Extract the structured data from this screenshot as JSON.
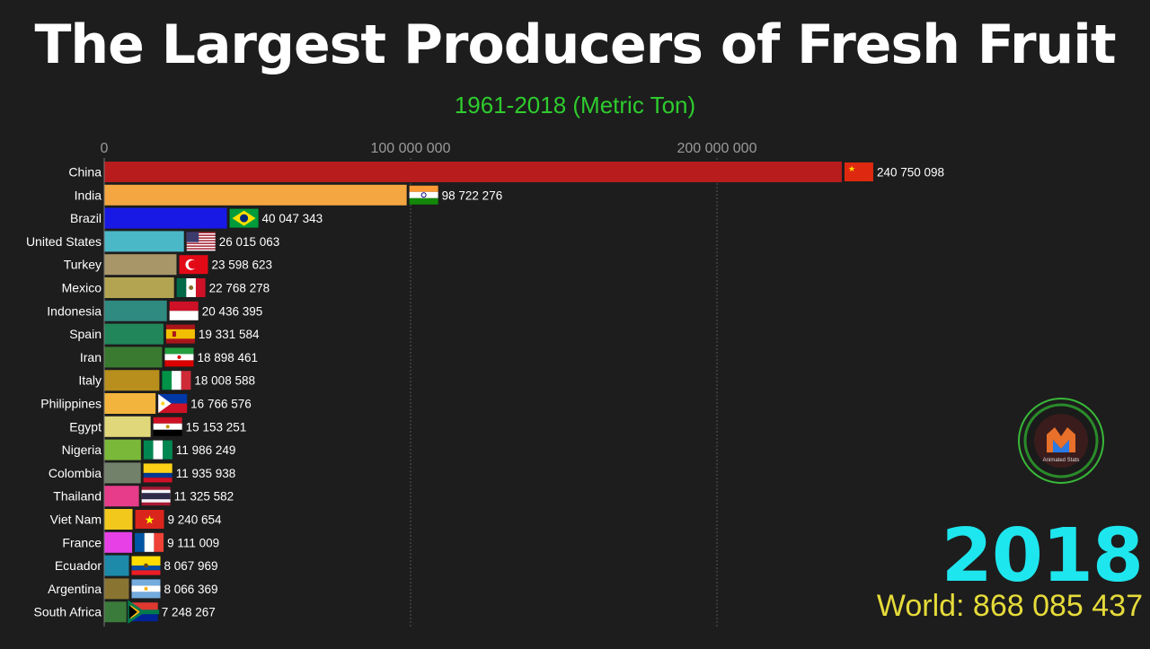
{
  "title": "The Largest Producers of Fresh Fruit",
  "subtitle": "1961-2018 (Metric Ton)",
  "year": "2018",
  "world_total": "World: 868 085 437",
  "logo_text": "Animated Stats",
  "chart_data": {
    "type": "bar",
    "orientation": "horizontal",
    "x_ticks": [
      "0",
      "100 000 000",
      "200 000 000"
    ],
    "x_tick_values": [
      0,
      100000000,
      200000000
    ],
    "grid": true,
    "bars": [
      {
        "country": "China",
        "value": 240750098,
        "label": "240 750 098",
        "color": "#b81c1c",
        "flag": "china-flag-icon"
      },
      {
        "country": "India",
        "value": 98722276,
        "label": "98 722 276",
        "color": "#f4a640",
        "flag": "india-flag-icon"
      },
      {
        "country": "Brazil",
        "value": 40047343,
        "label": "40 047 343",
        "color": "#1919e6",
        "flag": "brazil-flag-icon"
      },
      {
        "country": "United States",
        "value": 26015063,
        "label": "26 015 063",
        "color": "#4bb8c8",
        "flag": "us-flag-icon"
      },
      {
        "country": "Turkey",
        "value": 23598623,
        "label": "23 598 623",
        "color": "#a89668",
        "flag": "turkey-flag-icon"
      },
      {
        "country": "Mexico",
        "value": 22768278,
        "label": "22 768 278",
        "color": "#b3a452",
        "flag": "mexico-flag-icon"
      },
      {
        "country": "Indonesia",
        "value": 20436395,
        "label": "20 436 395",
        "color": "#2f8a80",
        "flag": "indonesia-flag-icon"
      },
      {
        "country": "Spain",
        "value": 19331584,
        "label": "19 331 584",
        "color": "#21875a",
        "flag": "spain-flag-icon"
      },
      {
        "country": "Iran",
        "value": 18898461,
        "label": "18 898 461",
        "color": "#3a7a30",
        "flag": "iran-flag-icon"
      },
      {
        "country": "Italy",
        "value": 18008588,
        "label": "18 008 588",
        "color": "#b88f1c",
        "flag": "italy-flag-icon"
      },
      {
        "country": "Philippines",
        "value": 16766576,
        "label": "16 766 576",
        "color": "#f2b43c",
        "flag": "philippines-flag-icon"
      },
      {
        "country": "Egypt",
        "value": 15153251,
        "label": "15 153 251",
        "color": "#e0d77a",
        "flag": "egypt-flag-icon"
      },
      {
        "country": "Nigeria",
        "value": 11986249,
        "label": "11 986 249",
        "color": "#7ab83a",
        "flag": "nigeria-flag-icon"
      },
      {
        "country": "Colombia",
        "value": 11935938,
        "label": "11 935 938",
        "color": "#72826a",
        "flag": "colombia-flag-icon"
      },
      {
        "country": "Thailand",
        "value": 11325582,
        "label": "11 325 582",
        "color": "#e63c8a",
        "flag": "thailand-flag-icon"
      },
      {
        "country": "Viet Nam",
        "value": 9240654,
        "label": "9 240 654",
        "color": "#f2c81c",
        "flag": "vietnam-flag-icon"
      },
      {
        "country": "France",
        "value": 9111009,
        "label": "9 111 009",
        "color": "#e640e6",
        "flag": "france-flag-icon"
      },
      {
        "country": "Ecuador",
        "value": 8067969,
        "label": "8 067 969",
        "color": "#1c8aa8",
        "flag": "ecuador-flag-icon"
      },
      {
        "country": "Argentina",
        "value": 8066369,
        "label": "8 066 369",
        "color": "#8a7432",
        "flag": "argentina-flag-icon"
      },
      {
        "country": "South Africa",
        "value": 7248267,
        "label": "7 248 267",
        "color": "#3a7a3a",
        "flag": "south-africa-flag-icon"
      }
    ]
  }
}
